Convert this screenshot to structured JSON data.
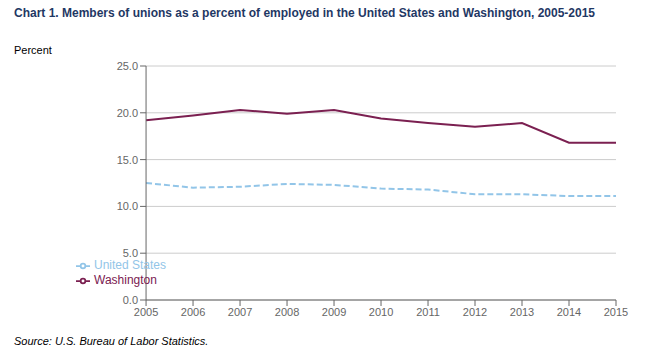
{
  "chart_data": {
    "type": "line",
    "title": "Chart 1. Members of unions as a percent of employed in the United States and Washington, 2005-2015",
    "ylabel": "Percent",
    "source": "Source: U.S. Bureau of Labor Statistics.",
    "x": [
      2005,
      2006,
      2007,
      2008,
      2009,
      2010,
      2011,
      2012,
      2013,
      2014,
      2015
    ],
    "series": [
      {
        "name": "United States",
        "color": "#92C5E8",
        "line_style": "dashed",
        "values": [
          12.5,
          12.0,
          12.1,
          12.4,
          12.3,
          11.9,
          11.8,
          11.3,
          11.3,
          11.1,
          11.1
        ]
      },
      {
        "name": "Washington",
        "color": "#7B2051",
        "line_style": "solid",
        "values": [
          19.2,
          19.7,
          20.3,
          19.9,
          20.3,
          19.4,
          18.9,
          18.5,
          18.9,
          16.8,
          16.8
        ]
      }
    ],
    "xlim": [
      2005,
      2015
    ],
    "xticks": [
      2005,
      2006,
      2007,
      2008,
      2009,
      2010,
      2011,
      2012,
      2013,
      2014,
      2015
    ],
    "ylim": [
      0,
      25
    ],
    "yticks": [
      {
        "value": 0,
        "label": "0.0"
      },
      {
        "value": 5,
        "label": "5.0"
      },
      {
        "value": 10,
        "label": "10.0"
      },
      {
        "value": 15,
        "label": "15.0"
      },
      {
        "value": 20,
        "label": "20.0"
      },
      {
        "value": 25,
        "label": "25.0"
      }
    ],
    "grid": true,
    "legend": "lower left"
  }
}
